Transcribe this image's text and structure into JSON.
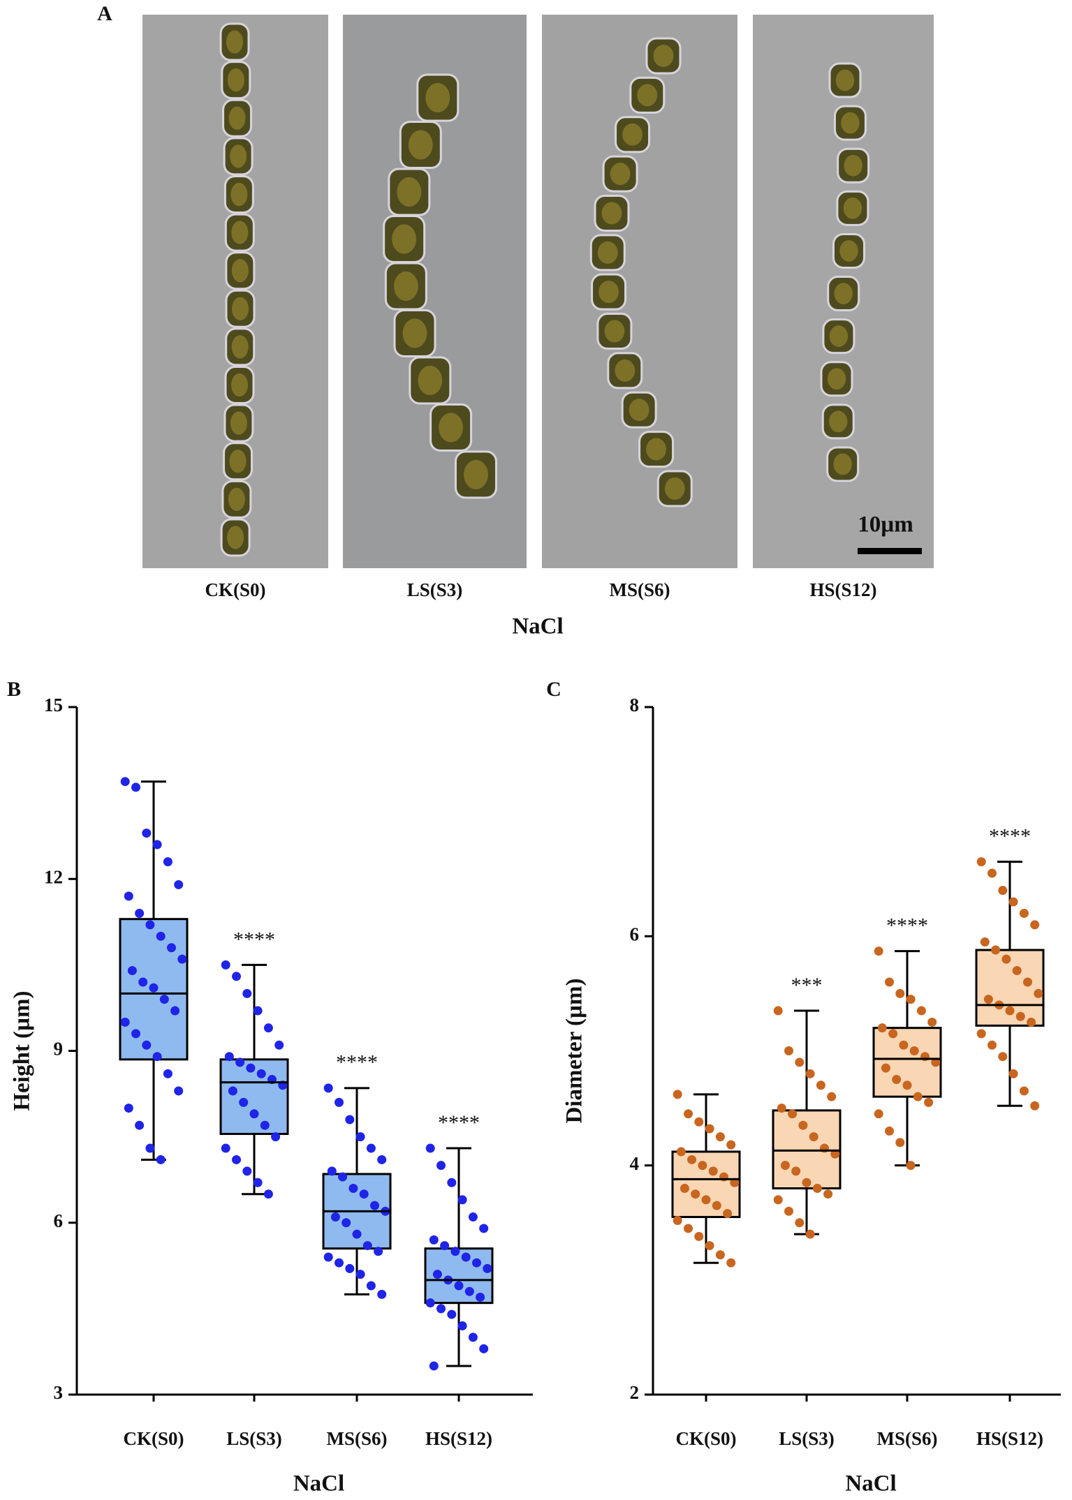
{
  "figure_a": {
    "label": "A",
    "images": [
      {
        "label": "CK(S0)"
      },
      {
        "label": "LS(S3)"
      },
      {
        "label": "MS(S6)"
      },
      {
        "label": "HS(S12)"
      }
    ],
    "xlabel": "NaCl",
    "scale_bar": "10µm"
  },
  "chart_data": [
    {
      "type": "box",
      "panel": "B",
      "ylabel": "Height (µm)",
      "xlabel": "NaCl",
      "categories": [
        "CK(S0)",
        "LS(S3)",
        "MS(S6)",
        "HS(S12)"
      ],
      "ylim": [
        3,
        15
      ],
      "yticks": [
        3,
        6,
        9,
        12,
        15
      ],
      "point_color": "#1f24e6",
      "box_color": "#8fbaf0",
      "annotations": [
        null,
        "****",
        "****",
        "****"
      ],
      "boxes": [
        {
          "min": 7.1,
          "q1": 8.85,
          "median": 10.0,
          "q3": 11.3,
          "max": 13.7,
          "points": [
            13.7,
            13.6,
            12.8,
            12.6,
            12.3,
            11.9,
            11.7,
            11.4,
            11.2,
            11.0,
            10.8,
            10.6,
            10.4,
            10.2,
            10.1,
            9.9,
            9.7,
            9.5,
            9.3,
            9.1,
            8.9,
            8.6,
            8.3,
            8.0,
            7.7,
            7.3,
            7.1
          ]
        },
        {
          "min": 6.5,
          "q1": 7.55,
          "median": 8.45,
          "q3": 8.85,
          "max": 10.5,
          "points": [
            10.5,
            10.3,
            10.0,
            9.7,
            9.4,
            9.1,
            8.9,
            8.8,
            8.7,
            8.6,
            8.5,
            8.4,
            8.3,
            8.1,
            7.9,
            7.7,
            7.5,
            7.3,
            7.1,
            6.9,
            6.7,
            6.5
          ]
        },
        {
          "min": 4.75,
          "q1": 5.55,
          "median": 6.2,
          "q3": 6.85,
          "max": 8.35,
          "points": [
            8.35,
            8.1,
            7.8,
            7.5,
            7.3,
            7.1,
            6.9,
            6.8,
            6.6,
            6.5,
            6.3,
            6.2,
            6.1,
            6.0,
            5.8,
            5.6,
            5.5,
            5.4,
            5.3,
            5.2,
            5.1,
            4.9,
            4.75
          ]
        },
        {
          "min": 3.5,
          "q1": 4.6,
          "median": 5.0,
          "q3": 5.55,
          "max": 7.3,
          "points": [
            7.3,
            7.0,
            6.7,
            6.4,
            6.1,
            5.9,
            5.7,
            5.6,
            5.5,
            5.4,
            5.3,
            5.2,
            5.1,
            5.0,
            4.9,
            4.8,
            4.7,
            4.6,
            4.5,
            4.4,
            4.2,
            4.0,
            3.8,
            3.5
          ]
        }
      ]
    },
    {
      "type": "box",
      "panel": "C",
      "ylabel": "Diameter (µm)",
      "xlabel": "NaCl",
      "categories": [
        "CK(S0)",
        "LS(S3)",
        "MS(S6)",
        "HS(S12)"
      ],
      "ylim": [
        2,
        8
      ],
      "yticks": [
        2,
        4,
        6,
        8
      ],
      "point_color": "#c8651f",
      "box_color": "#f9d6b4",
      "annotations": [
        null,
        "***",
        "****",
        "****"
      ],
      "boxes": [
        {
          "min": 3.15,
          "q1": 3.55,
          "median": 3.88,
          "q3": 4.12,
          "max": 4.62,
          "points": [
            4.62,
            4.45,
            4.38,
            4.32,
            4.25,
            4.18,
            4.12,
            4.05,
            4.0,
            3.95,
            3.9,
            3.85,
            3.8,
            3.75,
            3.7,
            3.65,
            3.58,
            3.52,
            3.45,
            3.38,
            3.3,
            3.22,
            3.15
          ]
        },
        {
          "min": 3.4,
          "q1": 3.8,
          "median": 4.13,
          "q3": 4.48,
          "max": 5.35,
          "points": [
            5.35,
            5.0,
            4.9,
            4.8,
            4.7,
            4.6,
            4.5,
            4.45,
            4.35,
            4.25,
            4.15,
            4.1,
            4.0,
            3.95,
            3.85,
            3.8,
            3.75,
            3.7,
            3.6,
            3.5,
            3.4
          ]
        },
        {
          "min": 4.0,
          "q1": 4.6,
          "median": 4.93,
          "q3": 5.2,
          "max": 5.87,
          "points": [
            5.87,
            5.6,
            5.5,
            5.45,
            5.35,
            5.25,
            5.2,
            5.15,
            5.05,
            5.0,
            4.95,
            4.9,
            4.85,
            4.75,
            4.7,
            4.6,
            4.55,
            4.45,
            4.3,
            4.2,
            4.0
          ]
        },
        {
          "min": 4.52,
          "q1": 5.22,
          "median": 5.4,
          "q3": 5.88,
          "max": 6.65,
          "points": [
            6.65,
            6.55,
            6.4,
            6.3,
            6.2,
            6.1,
            5.95,
            5.88,
            5.8,
            5.7,
            5.6,
            5.5,
            5.45,
            5.4,
            5.35,
            5.3,
            5.25,
            5.15,
            5.05,
            4.95,
            4.8,
            4.65,
            4.52
          ]
        }
      ]
    }
  ]
}
